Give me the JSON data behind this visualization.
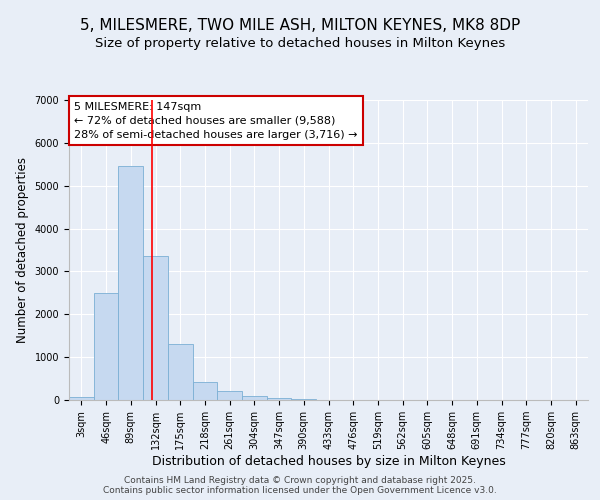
{
  "title": "5, MILESMERE, TWO MILE ASH, MILTON KEYNES, MK8 8DP",
  "subtitle": "Size of property relative to detached houses in Milton Keynes",
  "xlabel": "Distribution of detached houses by size in Milton Keynes",
  "ylabel": "Number of detached properties",
  "categories": [
    "3sqm",
    "46sqm",
    "89sqm",
    "132sqm",
    "175sqm",
    "218sqm",
    "261sqm",
    "304sqm",
    "347sqm",
    "390sqm",
    "433sqm",
    "476sqm",
    "519sqm",
    "562sqm",
    "605sqm",
    "648sqm",
    "691sqm",
    "734sqm",
    "777sqm",
    "820sqm",
    "863sqm"
  ],
  "values": [
    80,
    2500,
    5450,
    3350,
    1300,
    430,
    220,
    100,
    50,
    30,
    10,
    5,
    3,
    2,
    1,
    1,
    0,
    0,
    0,
    0,
    0
  ],
  "bar_color": "#c6d9f0",
  "bar_edgecolor": "#7bafd4",
  "background_color": "#e8eef7",
  "grid_color": "#ffffff",
  "annotation_text": "5 MILESMERE: 147sqm\n← 72% of detached houses are smaller (9,588)\n28% of semi-detached houses are larger (3,716) →",
  "annotation_box_color": "#ffffff",
  "annotation_box_edgecolor": "#cc0000",
  "footer": "Contains HM Land Registry data © Crown copyright and database right 2025.\nContains public sector information licensed under the Open Government Licence v3.0.",
  "title_fontsize": 11,
  "subtitle_fontsize": 9.5,
  "xlabel_fontsize": 9,
  "ylabel_fontsize": 8.5,
  "tick_fontsize": 7,
  "annotation_fontsize": 8,
  "footer_fontsize": 6.5,
  "ylim": [
    0,
    7000
  ],
  "yticks": [
    0,
    1000,
    2000,
    3000,
    4000,
    5000,
    6000,
    7000
  ],
  "vline_pos": 3.0
}
